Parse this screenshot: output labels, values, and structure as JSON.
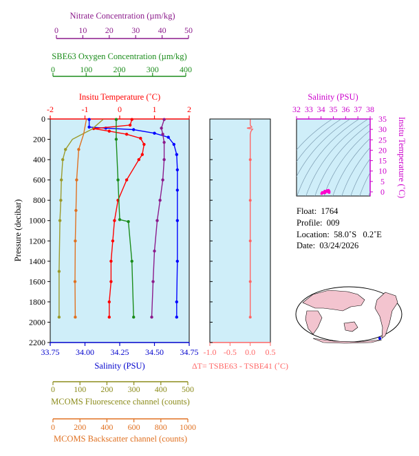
{
  "chart_data": {
    "type": "line",
    "pressure_axis": {
      "label": "Pressure (decibar)",
      "range": [
        0,
        2200
      ],
      "ticks": [
        0,
        200,
        400,
        600,
        800,
        1000,
        1200,
        1400,
        1600,
        1800,
        2000,
        2200
      ]
    },
    "axes": {
      "nitrate": {
        "label": "Nitrate Concentration (µm/kg)",
        "range": [
          0,
          50
        ],
        "ticks": [
          0,
          10,
          20,
          30,
          40,
          50
        ],
        "color": "#8b1a8b"
      },
      "oxygen": {
        "label": "SBE63 Oxygen Concentration (µm/kg)",
        "range": [
          0,
          400
        ],
        "ticks": [
          0,
          100,
          200,
          300,
          400
        ],
        "color": "#1a8c1a"
      },
      "temperature": {
        "label": "Insitu Temperature (˚C)",
        "range": [
          -2,
          2
        ],
        "ticks": [
          -2,
          -1,
          0,
          1,
          2
        ],
        "color": "#ff0000"
      },
      "salinity": {
        "label": "Salinity (PSU)",
        "range": [
          33.75,
          34.75
        ],
        "ticks": [
          "33.75",
          "34.00",
          "34.25",
          "34.50",
          "34.75"
        ],
        "color": "#0000cc"
      },
      "fluorescence": {
        "label": "MCOMS Fluorescence channel (counts)",
        "range": [
          0,
          500
        ],
        "ticks": [
          0,
          100,
          200,
          300,
          400,
          500
        ],
        "color": "#8b8b1a"
      },
      "backscatter": {
        "label": "MCOMS Backscatter channel (counts)",
        "range": [
          0,
          1000
        ],
        "ticks": [
          0,
          200,
          400,
          600,
          800,
          1000
        ],
        "color": "#e07020"
      }
    },
    "series": [
      {
        "name": "Salinity",
        "color": "#0000ff",
        "points": [
          [
            34.03,
            5
          ],
          [
            34.03,
            80
          ],
          [
            34.15,
            90
          ],
          [
            34.35,
            105
          ],
          [
            34.5,
            140
          ],
          [
            34.6,
            180
          ],
          [
            34.64,
            250
          ],
          [
            34.66,
            350
          ],
          [
            34.665,
            500
          ],
          [
            34.665,
            700
          ],
          [
            34.665,
            1000
          ],
          [
            34.665,
            1400
          ],
          [
            34.66,
            1800
          ],
          [
            34.66,
            1950
          ]
        ]
      },
      {
        "name": "Temperature",
        "color": "#ff0000",
        "points": [
          [
            0.35,
            5
          ],
          [
            0.3,
            60
          ],
          [
            -0.75,
            95
          ],
          [
            -0.3,
            120
          ],
          [
            0.2,
            150
          ],
          [
            0.6,
            190
          ],
          [
            0.7,
            250
          ],
          [
            0.65,
            350
          ],
          [
            0.55,
            400
          ],
          [
            0.2,
            600
          ],
          [
            -0.05,
            800
          ],
          [
            -0.15,
            1000
          ],
          [
            -0.2,
            1200
          ],
          [
            -0.25,
            1400
          ],
          [
            -0.25,
            1600
          ],
          [
            -0.3,
            1800
          ],
          [
            -0.3,
            1950
          ]
        ]
      },
      {
        "name": "Nitrate",
        "color": "#8b1a8b",
        "points": [
          [
            41,
            5
          ],
          [
            40,
            90
          ],
          [
            40.5,
            150
          ],
          [
            41,
            230
          ],
          [
            41,
            400
          ],
          [
            40.5,
            600
          ],
          [
            39.5,
            800
          ],
          [
            38.5,
            1000
          ],
          [
            37.5,
            1300
          ],
          [
            37,
            1600
          ],
          [
            36.5,
            1950
          ]
        ]
      },
      {
        "name": "Oxygen",
        "color": "#1a8c1a",
        "points": [
          [
            190,
            5
          ],
          [
            190,
            200
          ],
          [
            195,
            600
          ],
          [
            200,
            990
          ],
          [
            225,
            1010
          ],
          [
            235,
            1400
          ],
          [
            240,
            1950
          ]
        ]
      },
      {
        "name": "Fluorescence",
        "color": "#9a9a2a",
        "points": [
          [
            190,
            5
          ],
          [
            150,
            100
          ],
          [
            80,
            200
          ],
          [
            55,
            300
          ],
          [
            45,
            400
          ],
          [
            40,
            600
          ],
          [
            38,
            800
          ],
          [
            35,
            1000
          ],
          [
            32,
            1500
          ],
          [
            32,
            1950
          ]
        ]
      },
      {
        "name": "Backscatter",
        "color": "#e07020",
        "points": [
          [
            260,
            5
          ],
          [
            240,
            150
          ],
          [
            205,
            300
          ],
          [
            190,
            600
          ],
          [
            185,
            900
          ],
          [
            180,
            1200
          ],
          [
            178,
            1600
          ],
          [
            180,
            1950
          ]
        ]
      }
    ],
    "delta_t": {
      "label": "ΔT= TSBE63 - TSBE41 (˚C)",
      "range": [
        -1.0,
        0.5
      ],
      "ticks": [
        "-1.0",
        "-0.5",
        "0.0",
        "0.5"
      ],
      "color": "#ff6666",
      "points": [
        [
          0,
          5
        ],
        [
          0,
          60
        ],
        [
          0.04,
          80
        ],
        [
          -0.08,
          90
        ],
        [
          0.06,
          100
        ],
        [
          0.02,
          120
        ],
        [
          0,
          150
        ],
        [
          0,
          400
        ],
        [
          0,
          800
        ],
        [
          0,
          1200
        ],
        [
          0,
          1600
        ],
        [
          0,
          1950
        ]
      ]
    },
    "ts_diagram": {
      "xlabel": "Salinity (PSU)",
      "ylabel": "Insitu Temperature (˚C)",
      "xlim": [
        32,
        38
      ],
      "ylim": [
        -2,
        35
      ],
      "xticks": [
        32,
        33,
        34,
        35,
        36,
        37,
        38
      ],
      "yticks": [
        0,
        5,
        10,
        15,
        20,
        25,
        30,
        35
      ],
      "points": [
        [
          34.05,
          -0.8
        ],
        [
          34.1,
          -0.3
        ],
        [
          34.3,
          0.3
        ],
        [
          34.5,
          0.6
        ],
        [
          34.6,
          0.7
        ],
        [
          34.66,
          0.2
        ],
        [
          34.66,
          -0.3
        ],
        [
          34.5,
          0.1
        ],
        [
          34.3,
          -0.5
        ]
      ]
    },
    "grid": false,
    "legend": "none"
  },
  "info": {
    "float": "Float:  1764",
    "profile": "Profile:  009",
    "location": "Location:  58.0˚S   0.2˚E",
    "date": "Date:  03/24/2026"
  },
  "colors": {
    "panel_bg": "#cfeef9"
  }
}
